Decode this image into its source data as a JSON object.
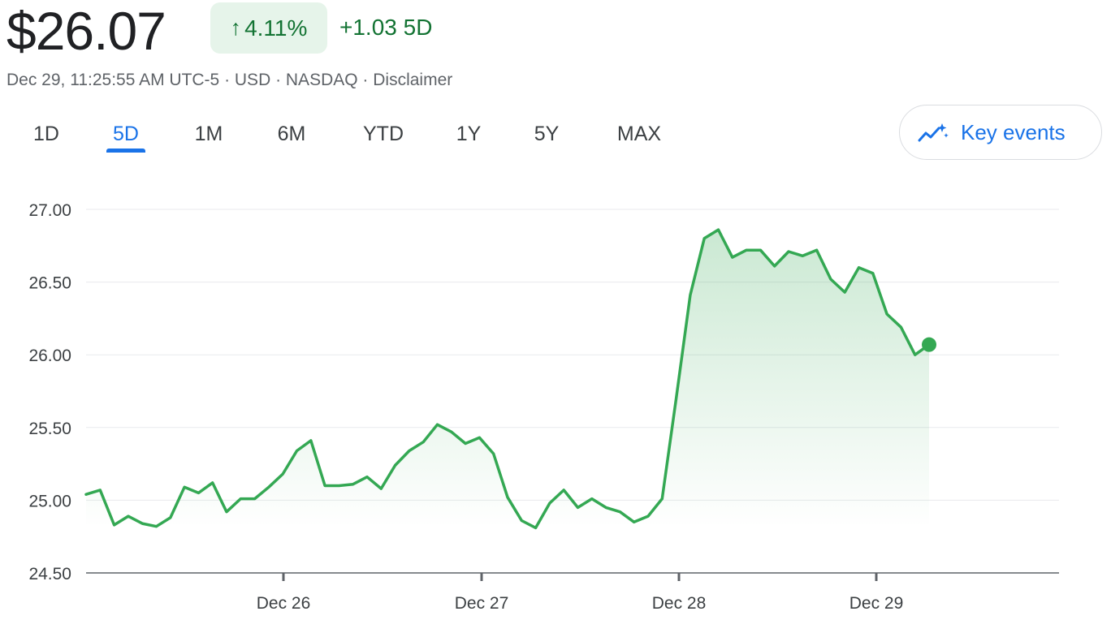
{
  "header": {
    "price": "$26.07",
    "change_arrow": "↑",
    "change_percent": "4.11%",
    "change_abs": "+1.03 5D",
    "meta": "Dec 29, 11:25:55 AM UTC-5 · USD · NASDAQ · Disclaimer"
  },
  "tabs": [
    "1D",
    "5D",
    "1M",
    "6M",
    "YTD",
    "1Y",
    "5Y",
    "MAX"
  ],
  "active_tab": "5D",
  "key_events": {
    "label": "Key events",
    "icon": "trending-sparkle-icon"
  },
  "colors": {
    "line": "#34a853",
    "positive_text": "#137333",
    "positive_bg": "#e6f4ea",
    "accent": "#1a73e8"
  },
  "chart_data": {
    "type": "area",
    "ylim": [
      24.5,
      27.0
    ],
    "yticks": [
      "27.00",
      "26.50",
      "26.00",
      "25.50",
      "25.00",
      "24.50"
    ],
    "xtick_labels": [
      "Dec 26",
      "Dec 27",
      "Dec 28",
      "Dec 29"
    ],
    "grid": true,
    "series": [
      {
        "values": [
          25.04,
          25.07,
          24.83,
          24.89,
          24.84,
          24.82,
          24.88,
          25.09,
          25.05,
          25.12,
          24.92,
          25.01,
          25.01,
          25.09,
          25.18,
          25.34,
          25.41,
          25.1,
          25.1,
          25.11,
          25.16,
          25.08,
          25.24,
          25.34,
          25.4,
          25.52,
          25.47,
          25.39,
          25.43,
          25.32,
          25.02,
          24.86,
          24.81,
          24.98,
          25.07,
          24.95,
          25.01,
          24.95,
          24.92,
          24.85,
          24.89,
          25.01,
          25.7,
          26.41,
          26.8,
          26.86,
          26.67,
          26.72,
          26.72,
          26.61,
          26.71,
          26.68,
          26.72,
          26.52,
          26.43,
          26.6,
          26.56,
          26.28,
          26.19,
          26.0,
          26.07
        ]
      }
    ]
  }
}
